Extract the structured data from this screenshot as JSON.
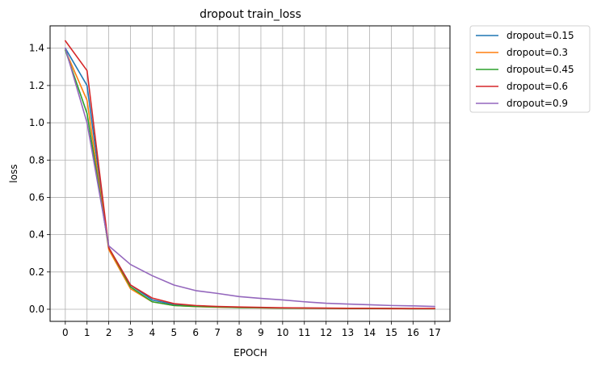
{
  "chart_data": {
    "type": "line",
    "title": "dropout train_loss",
    "xlabel": "EPOCH",
    "ylabel": "loss",
    "x": [
      0,
      1,
      2,
      3,
      4,
      5,
      6,
      7,
      8,
      9,
      10,
      11,
      12,
      13,
      14,
      15,
      16,
      17
    ],
    "xticks": [
      "0",
      "1",
      "2",
      "3",
      "4",
      "5",
      "6",
      "7",
      "8",
      "9",
      "10",
      "11",
      "12",
      "13",
      "14",
      "15",
      "16",
      "17"
    ],
    "yticks": [
      "0.0",
      "0.2",
      "0.4",
      "0.6",
      "0.8",
      "1.0",
      "1.2",
      "1.4"
    ],
    "ylim": [
      -0.065,
      1.52
    ],
    "xlim": [
      -0.7,
      17.7
    ],
    "grid": true,
    "legend_position": "outside-top-right",
    "series": [
      {
        "name": "dropout=0.15",
        "color": "#1f77b4",
        "values": [
          1.4,
          1.2,
          0.33,
          0.13,
          0.05,
          0.025,
          0.017,
          0.013,
          0.01,
          0.008,
          0.007,
          0.006,
          0.005,
          0.005,
          0.004,
          0.004,
          0.003,
          0.003
        ]
      },
      {
        "name": "dropout=0.3",
        "color": "#ff7f0e",
        "values": [
          1.39,
          1.12,
          0.32,
          0.11,
          0.04,
          0.02,
          0.014,
          0.011,
          0.009,
          0.007,
          0.006,
          0.005,
          0.005,
          0.004,
          0.004,
          0.003,
          0.003,
          0.003
        ]
      },
      {
        "name": "dropout=0.45",
        "color": "#2ca02c",
        "values": [
          1.39,
          1.05,
          0.33,
          0.12,
          0.04,
          0.02,
          0.015,
          0.012,
          0.009,
          0.008,
          0.006,
          0.006,
          0.005,
          0.004,
          0.004,
          0.004,
          0.003,
          0.003
        ]
      },
      {
        "name": "dropout=0.6",
        "color": "#d62728",
        "values": [
          1.44,
          1.28,
          0.33,
          0.13,
          0.06,
          0.03,
          0.02,
          0.015,
          0.012,
          0.01,
          0.008,
          0.007,
          0.006,
          0.005,
          0.005,
          0.004,
          0.004,
          0.004
        ]
      },
      {
        "name": "dropout=0.9",
        "color": "#9467bd",
        "values": [
          1.4,
          1.0,
          0.34,
          0.24,
          0.18,
          0.13,
          0.1,
          0.085,
          0.068,
          0.058,
          0.05,
          0.04,
          0.032,
          0.028,
          0.024,
          0.02,
          0.018,
          0.015
        ]
      }
    ]
  }
}
